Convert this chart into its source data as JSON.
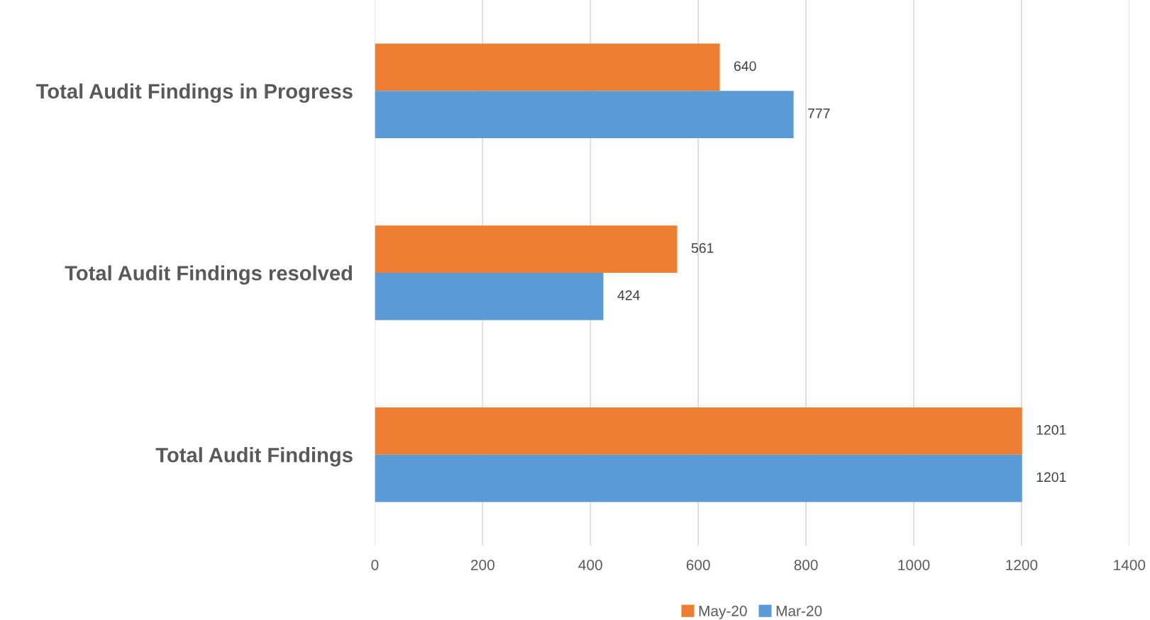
{
  "chart_data": {
    "type": "bar",
    "orientation": "horizontal",
    "categories": [
      "Total Audit Findings in Progress",
      "Total Audit Findings resolved",
      "Total Audit Findings"
    ],
    "series": [
      {
        "name": "May-20",
        "color": "#ed7d31",
        "values": [
          640,
          561,
          1201
        ]
      },
      {
        "name": "Mar-20",
        "color": "#5b9bd5",
        "values": [
          777,
          424,
          1201
        ]
      }
    ],
    "xlim": [
      0,
      1400
    ],
    "xticks": [
      0,
      200,
      400,
      600,
      800,
      1000,
      1200,
      1400
    ],
    "grid": "x",
    "legend": "bottom",
    "data_labels": true
  }
}
